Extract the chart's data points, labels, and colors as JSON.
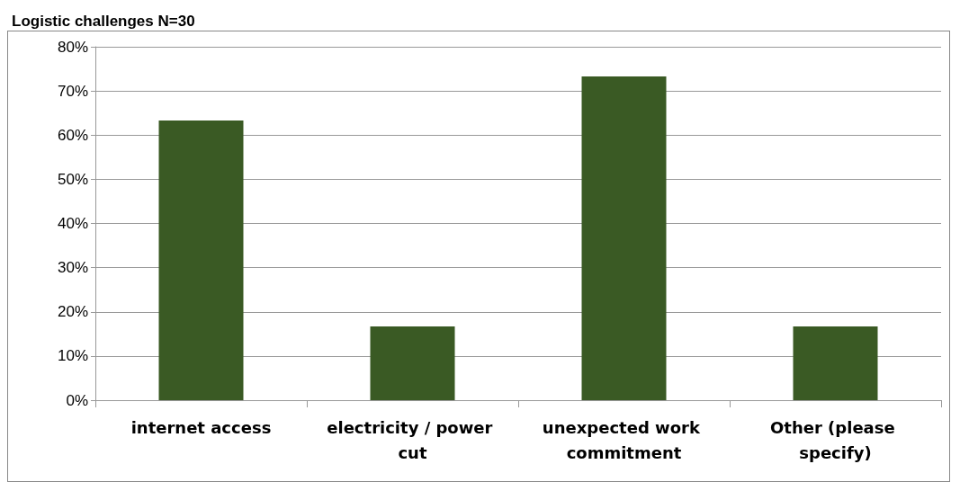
{
  "chart_data": {
    "type": "bar",
    "title": "Logistic challenges N=30",
    "categories": [
      "internet access",
      "electricity / power cut",
      "unexpected work commitment",
      "Other (please specify)"
    ],
    "values": [
      63.3,
      16.7,
      73.3,
      16.7
    ],
    "color": "#3a5a24",
    "ylim": [
      0,
      80
    ],
    "yticks": [
      {
        "value": 0,
        "label": "0%"
      },
      {
        "value": 10,
        "label": "10%"
      },
      {
        "value": 20,
        "label": "20%"
      },
      {
        "value": 30,
        "label": "30%"
      },
      {
        "value": 40,
        "label": "40%"
      },
      {
        "value": 50,
        "label": "50%"
      },
      {
        "value": 60,
        "label": "60%"
      },
      {
        "value": 70,
        "label": "70%"
      },
      {
        "value": 80,
        "label": "80%"
      }
    ],
    "grid": "y"
  }
}
